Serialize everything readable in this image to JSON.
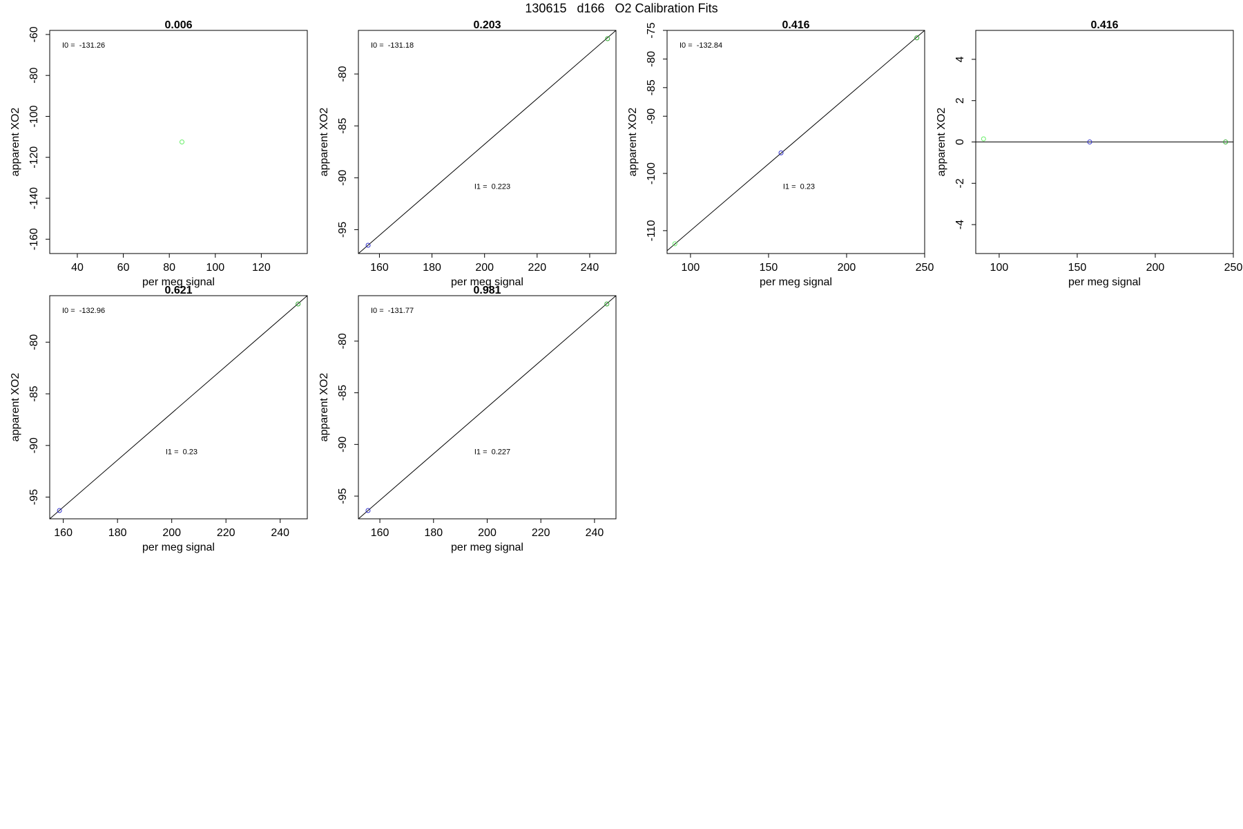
{
  "page": {
    "title": "130615   d166   O2 Calibration Fits"
  },
  "chart_data": [
    {
      "type": "scatter",
      "title": "0.006",
      "xlabel": "per meg signal",
      "ylabel": "apparent XO2",
      "xlim": [
        28,
        140
      ],
      "ylim": [
        -167,
        -58
      ],
      "x_ticks": [
        40,
        60,
        80,
        100,
        120
      ],
      "y_ticks": [
        -60,
        -80,
        -100,
        -120,
        -140,
        -160
      ],
      "annotations": [
        {
          "text": "I0 =  -131.26",
          "at": "top-left"
        }
      ],
      "points": [
        {
          "x": 85.5,
          "y": -112.5,
          "color": "#66ee66"
        }
      ],
      "fit_line": null
    },
    {
      "type": "scatter",
      "title": "0.203",
      "xlabel": "per meg signal",
      "ylabel": "apparent XO2",
      "xlim": [
        152,
        250
      ],
      "ylim": [
        -97.3,
        -75.8
      ],
      "x_ticks": [
        160,
        180,
        200,
        220,
        240
      ],
      "y_ticks": [
        -80,
        -85,
        -90,
        -95
      ],
      "annotations": [
        {
          "text": "I0 =  -131.18",
          "at": "top-left"
        },
        {
          "text": "I1 =  0.223",
          "at": "center-right"
        }
      ],
      "points": [
        {
          "x": 155.7,
          "y": -96.5,
          "color": "#3333cc"
        },
        {
          "x": 246.8,
          "y": -76.6,
          "color": "#33aa33"
        }
      ],
      "fit_line": {
        "x": [
          152,
          250
        ],
        "y": [
          -97.3,
          -75.8
        ]
      }
    },
    {
      "type": "scatter",
      "title": "0.416",
      "xlabel": "per meg signal",
      "ylabel": "apparent XO2",
      "xlim": [
        85,
        250
      ],
      "ylim": [
        -114,
        -75
      ],
      "x_ticks": [
        100,
        150,
        200,
        250
      ],
      "y_ticks": [
        -75,
        -80,
        -85,
        -90,
        -100,
        -110
      ],
      "annotations": [
        {
          "text": "I0 =  -132.84",
          "at": "top-left"
        },
        {
          "text": "I1 =  0.23",
          "at": "center-right"
        }
      ],
      "points": [
        {
          "x": 90,
          "y": -112.3,
          "color": "#66ee66"
        },
        {
          "x": 158,
          "y": -96.4,
          "color": "#3333cc"
        },
        {
          "x": 245,
          "y": -76.3,
          "color": "#33aa33"
        }
      ],
      "fit_line": {
        "x": [
          85,
          250
        ],
        "y": [
          -113.5,
          -75.0
        ]
      }
    },
    {
      "type": "scatter",
      "title": "0.416",
      "xlabel": "per meg signal",
      "ylabel": "apparent XO2",
      "xlim": [
        85,
        250
      ],
      "ylim": [
        -5.4,
        5.4
      ],
      "x_ticks": [
        100,
        150,
        200,
        250
      ],
      "y_ticks": [
        4,
        2,
        0,
        -2,
        -4
      ],
      "annotations": [],
      "points": [
        {
          "x": 90,
          "y": 0.15,
          "color": "#66ee66"
        },
        {
          "x": 158,
          "y": 0,
          "color": "#3333cc"
        },
        {
          "x": 245,
          "y": 0,
          "color": "#33aa33"
        }
      ],
      "fit_line": {
        "x": [
          85,
          250
        ],
        "y": [
          0,
          0
        ]
      }
    },
    {
      "type": "scatter",
      "title": "0.621",
      "xlabel": "per meg signal",
      "ylabel": "apparent XO2",
      "xlim": [
        155,
        250
      ],
      "ylim": [
        -97.1,
        -75.5
      ],
      "x_ticks": [
        160,
        180,
        200,
        220,
        240
      ],
      "y_ticks": [
        -80,
        -85,
        -90,
        -95
      ],
      "annotations": [
        {
          "text": "I0 =  -132.96",
          "at": "top-left"
        },
        {
          "text": "I1 =  0.23",
          "at": "center-right"
        }
      ],
      "points": [
        {
          "x": 158.6,
          "y": -96.3,
          "color": "#3333cc"
        },
        {
          "x": 246.6,
          "y": -76.3,
          "color": "#33aa33"
        }
      ],
      "fit_line": {
        "x": [
          155,
          250
        ],
        "y": [
          -97.1,
          -75.5
        ]
      }
    },
    {
      "type": "scatter",
      "title": "0.981",
      "xlabel": "per meg signal",
      "ylabel": "apparent XO2",
      "xlim": [
        152,
        248
      ],
      "ylim": [
        -97.2,
        -75.6
      ],
      "x_ticks": [
        160,
        180,
        200,
        220,
        240
      ],
      "y_ticks": [
        -80,
        -85,
        -90,
        -95
      ],
      "annotations": [
        {
          "text": "I0 =  -131.77",
          "at": "top-left"
        },
        {
          "text": "I1 =  0.227",
          "at": "center-right"
        }
      ],
      "points": [
        {
          "x": 155.6,
          "y": -96.4,
          "color": "#3333cc"
        },
        {
          "x": 244.6,
          "y": -76.4,
          "color": "#33aa33"
        }
      ],
      "fit_line": {
        "x": [
          152,
          248
        ],
        "y": [
          -97.2,
          -75.6
        ]
      }
    }
  ]
}
